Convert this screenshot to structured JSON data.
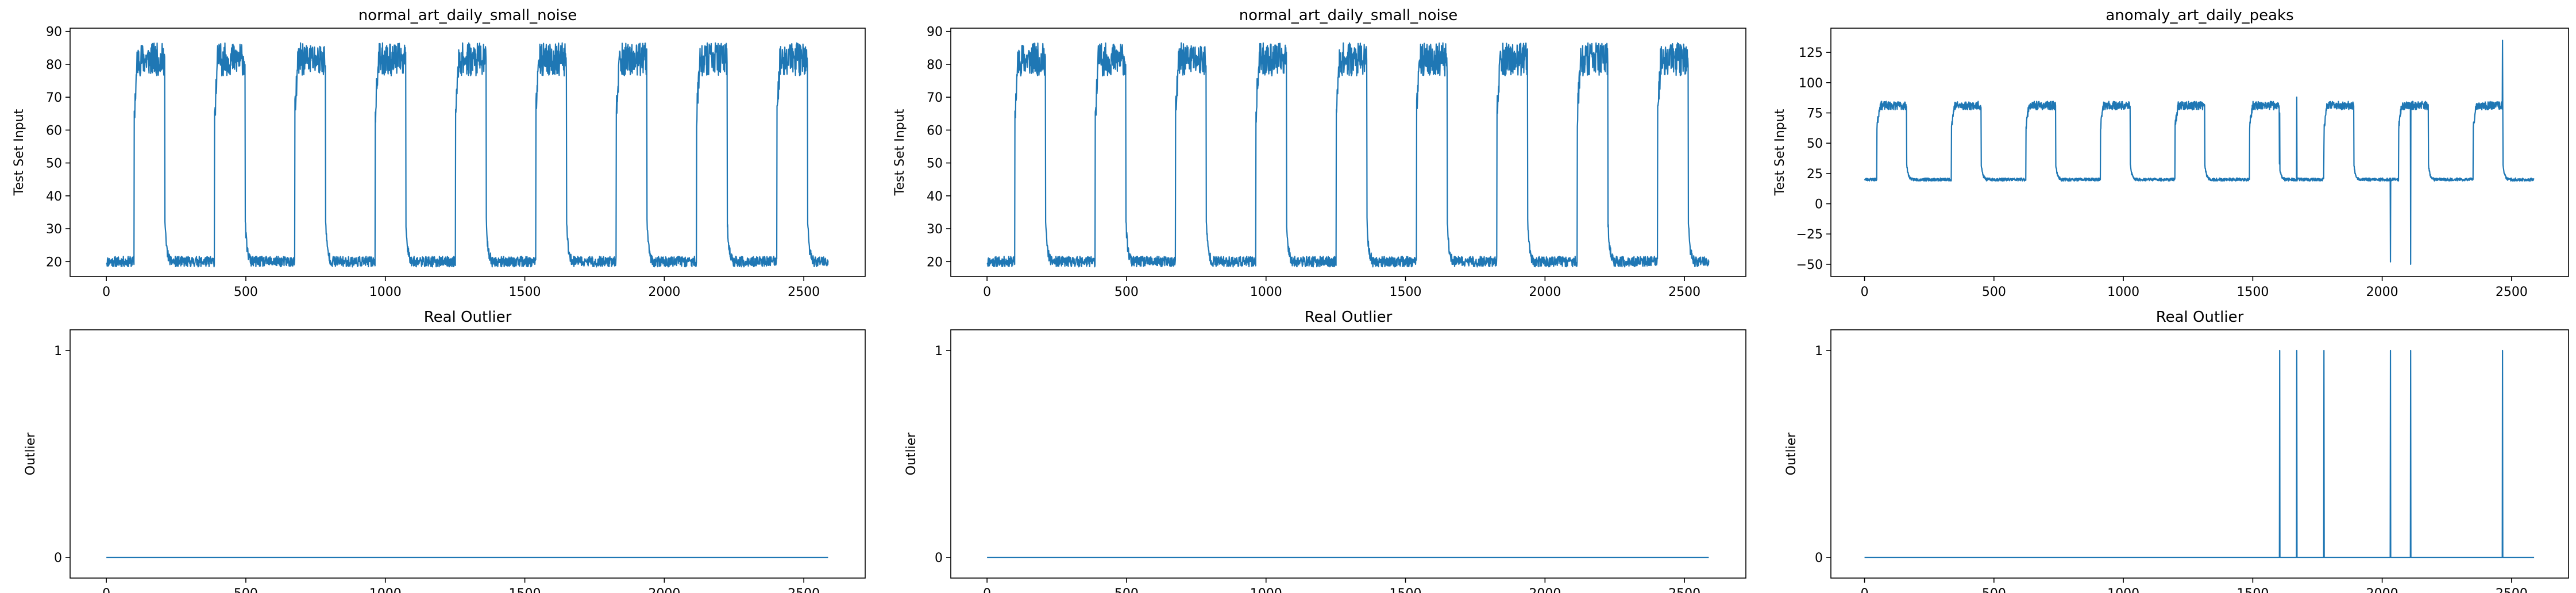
{
  "colors": {
    "line": "#1f77b4",
    "axes": "#000000",
    "background": "#ffffff"
  },
  "chart_data": [
    {
      "type": "line",
      "title": "normal_art_daily_small_noise",
      "ylabel": "Test Set Input",
      "xlabel": "",
      "xlim": [
        -130,
        2720
      ],
      "ylim": [
        15.5,
        91
      ],
      "xticks": [
        "0",
        "500",
        "1000",
        "1500",
        "2000",
        "2500"
      ],
      "yticks": [
        "20",
        "30",
        "40",
        "50",
        "60",
        "70",
        "80",
        "90"
      ],
      "grid": false,
      "signal": {
        "kind": "daily_square_wave",
        "length": 2588,
        "period": 288,
        "rise_offset": 100,
        "high_duration": 110,
        "low_level": 20,
        "low_noise": 1.6,
        "high_level": 80,
        "high_noise": 5,
        "spikes": [],
        "seed": 11
      }
    },
    {
      "type": "line",
      "title": "normal_art_daily_small_noise",
      "ylabel": "Test Set Input",
      "xlabel": "",
      "xlim": [
        -130,
        2720
      ],
      "ylim": [
        15.5,
        91
      ],
      "xticks": [
        "0",
        "500",
        "1000",
        "1500",
        "2000",
        "2500"
      ],
      "yticks": [
        "20",
        "30",
        "40",
        "50",
        "60",
        "70",
        "80",
        "90"
      ],
      "grid": false,
      "signal": {
        "kind": "daily_square_wave",
        "length": 2588,
        "period": 288,
        "rise_offset": 100,
        "high_duration": 110,
        "low_level": 20,
        "low_noise": 1.6,
        "high_level": 80,
        "high_noise": 5,
        "spikes": [],
        "seed": 11
      }
    },
    {
      "type": "line",
      "title": "anomaly_art_daily_peaks",
      "ylabel": "Test Set Input",
      "xlabel": "",
      "xlim": [
        -130,
        2720
      ],
      "ylim": [
        -60,
        145
      ],
      "xticks": [
        "0",
        "500",
        "1000",
        "1500",
        "2000",
        "2500"
      ],
      "yticks": [
        "−50",
        "−25",
        "0",
        "25",
        "50",
        "75",
        "100",
        "125"
      ],
      "grid": false,
      "signal": {
        "kind": "daily_square_wave",
        "length": 2588,
        "period": 288,
        "rise_offset": 48,
        "high_duration": 115,
        "low_level": 20,
        "low_noise": 1.2,
        "high_level": 80,
        "high_noise": 3.5,
        "spikes": [
          {
            "x": 1604,
            "y": 75
          },
          {
            "x": 1670,
            "y": 88
          },
          {
            "x": 1775,
            "y": 48
          },
          {
            "x": 2032,
            "y": -48
          },
          {
            "x": 2110,
            "y": -50
          },
          {
            "x": 2465,
            "y": 135
          }
        ],
        "seed": 23
      }
    },
    {
      "type": "line",
      "title": "Real Outlier",
      "ylabel": "Outlier",
      "xlabel": "",
      "xlim": [
        -130,
        2720
      ],
      "ylim": [
        -0.1,
        1.1
      ],
      "xticks": [
        "0",
        "500",
        "1000",
        "1500",
        "2000",
        "2500"
      ],
      "yticks": [
        "0",
        "1"
      ],
      "grid": false,
      "outlier": {
        "length": 2588,
        "spikes": []
      }
    },
    {
      "type": "line",
      "title": "Real Outlier",
      "ylabel": "Outlier",
      "xlabel": "",
      "xlim": [
        -130,
        2720
      ],
      "ylim": [
        -0.1,
        1.1
      ],
      "xticks": [
        "0",
        "500",
        "1000",
        "1500",
        "2000",
        "2500"
      ],
      "yticks": [
        "0",
        "1"
      ],
      "grid": false,
      "outlier": {
        "length": 2588,
        "spikes": []
      }
    },
    {
      "type": "line",
      "title": "Real Outlier",
      "ylabel": "Outlier",
      "xlabel": "",
      "xlim": [
        -130,
        2720
      ],
      "ylim": [
        -0.1,
        1.1
      ],
      "xticks": [
        "0",
        "500",
        "1000",
        "1500",
        "2000",
        "2500"
      ],
      "yticks": [
        "0",
        "1"
      ],
      "grid": false,
      "outlier": {
        "length": 2588,
        "spikes": [
          1604,
          1670,
          1775,
          2032,
          2110,
          2465
        ]
      }
    }
  ]
}
